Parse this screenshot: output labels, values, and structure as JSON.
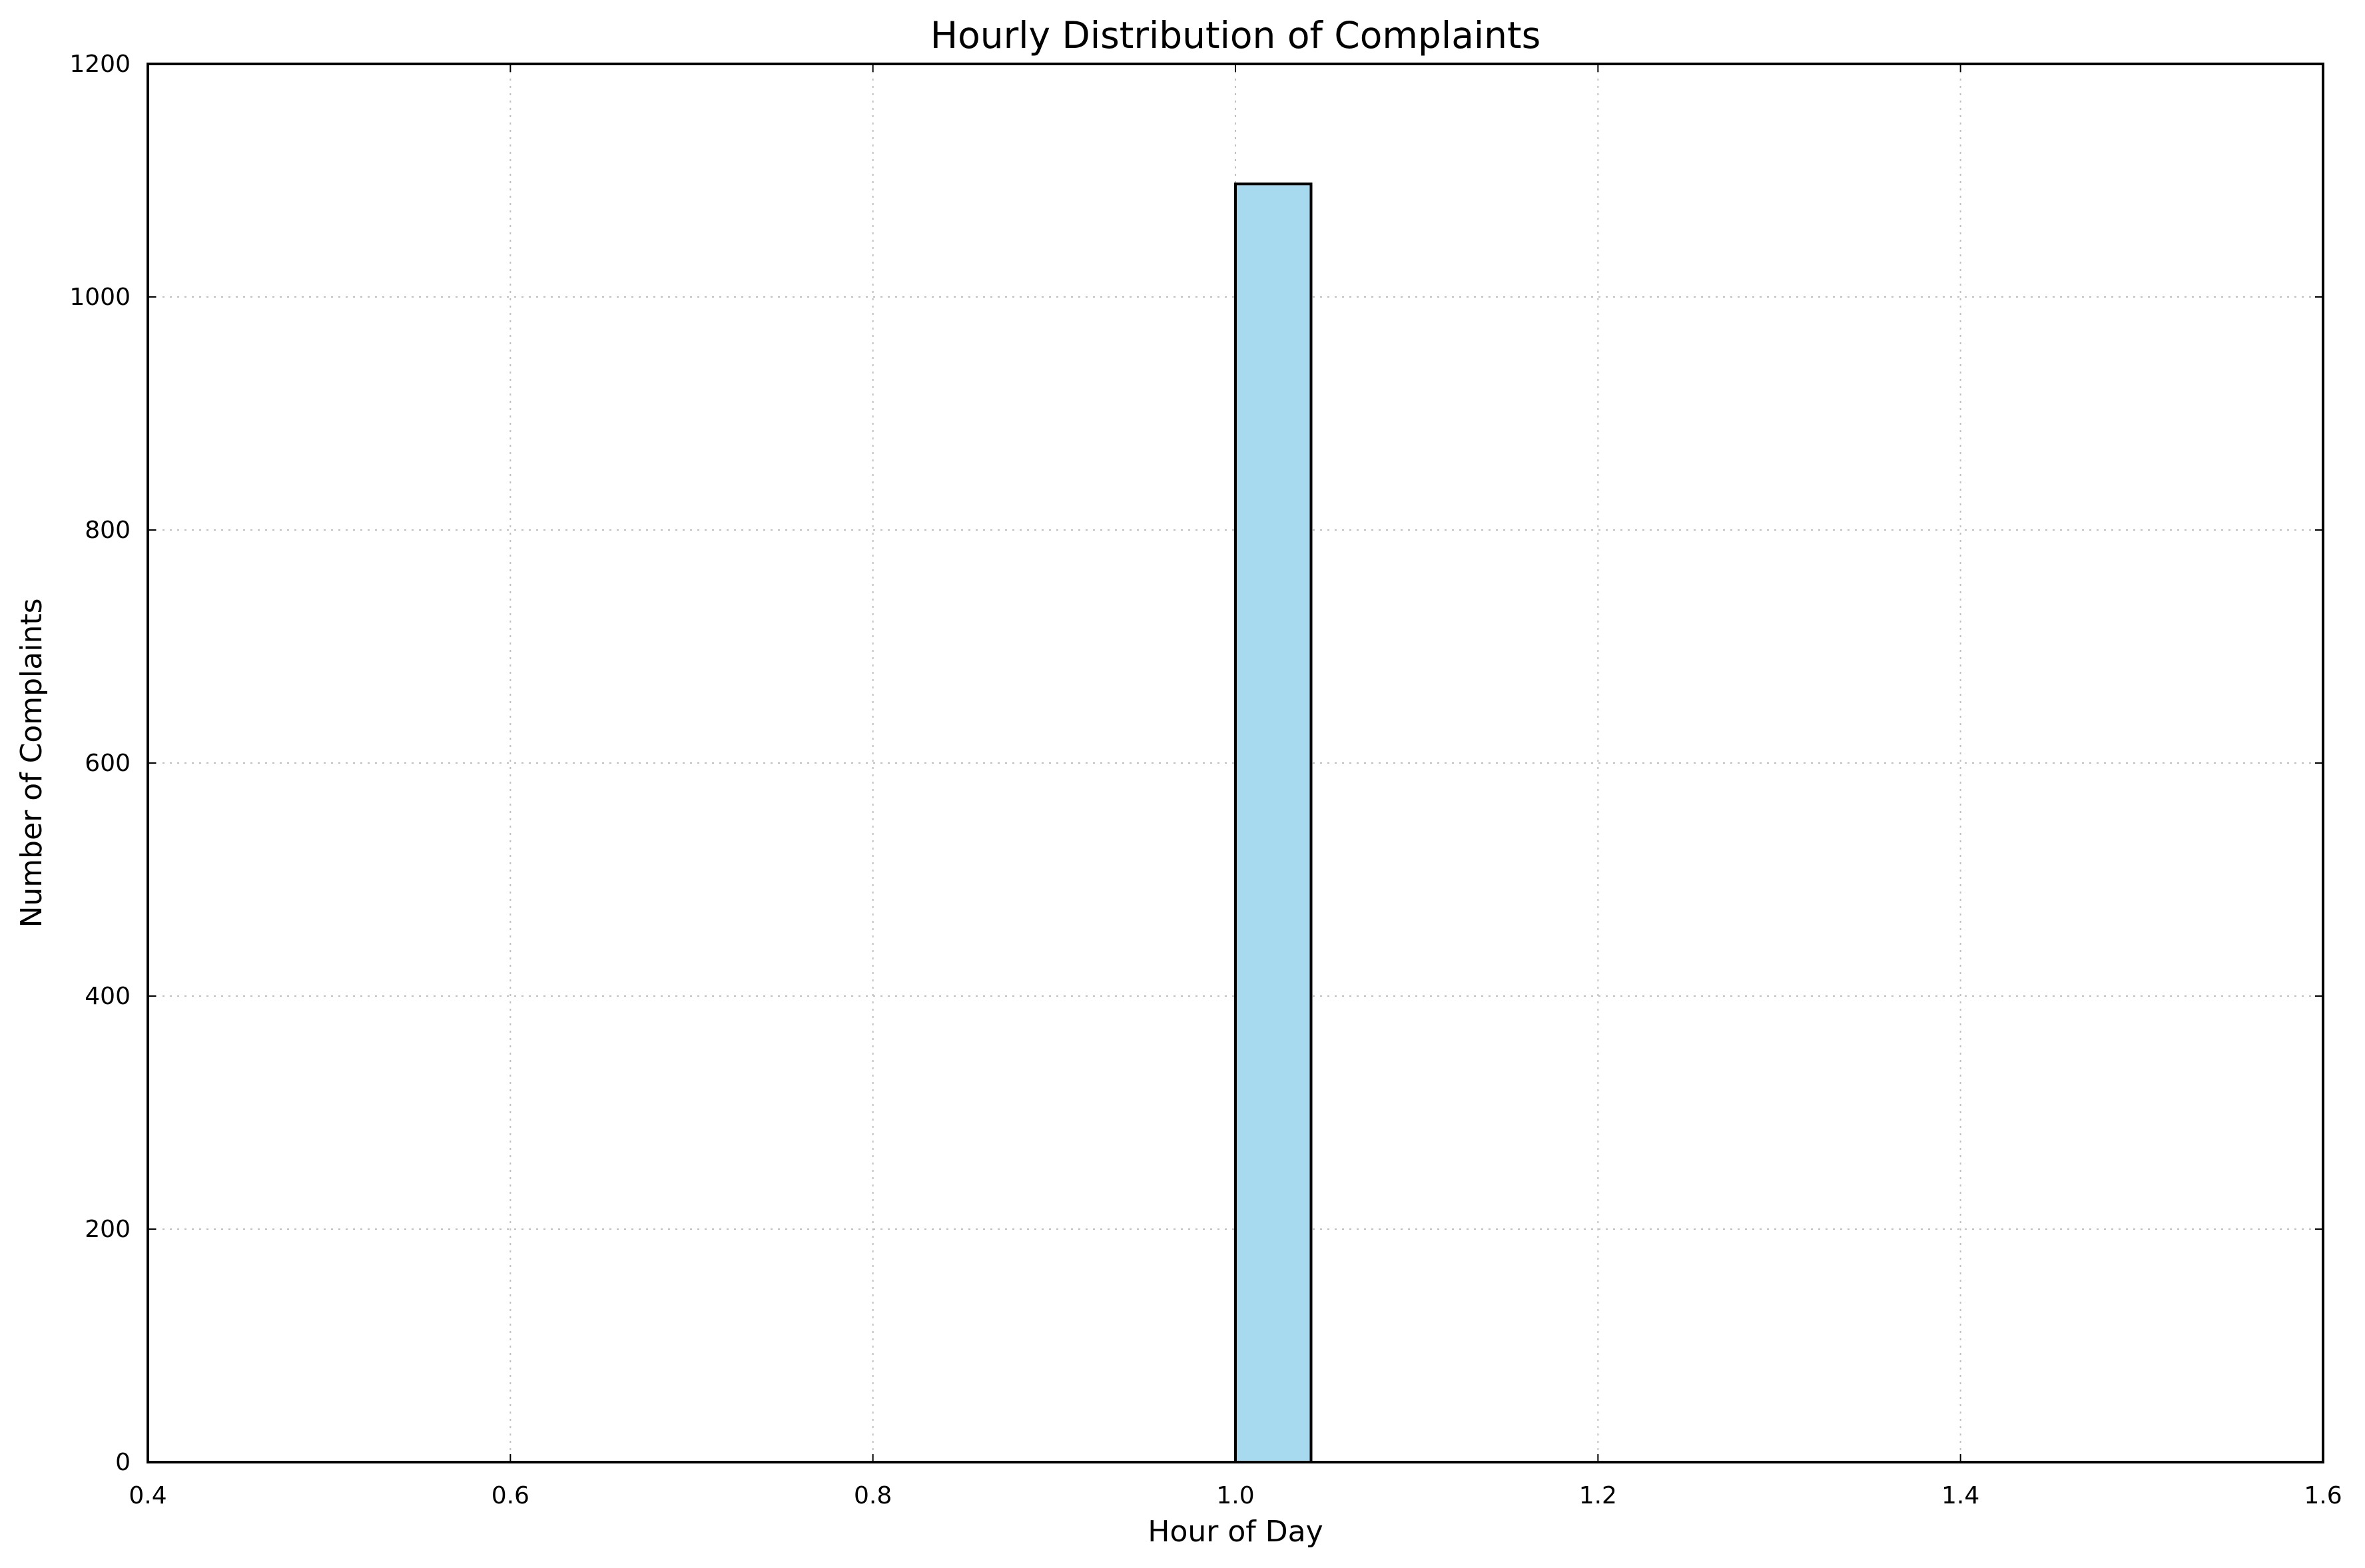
{
  "chart_data": {
    "type": "bar",
    "title": "Hourly Distribution of Complaints",
    "xlabel": "Hour of Day",
    "ylabel": "Number of Complaints",
    "xlim": [
      0.4,
      1.6
    ],
    "ylim": [
      0,
      1200
    ],
    "xticks": [
      0.4,
      0.6,
      0.8,
      1.0,
      1.2,
      1.4,
      1.6
    ],
    "xtick_labels": [
      "0.4",
      "0.6",
      "0.8",
      "1.0",
      "1.2",
      "1.4",
      "1.6"
    ],
    "yticks": [
      0,
      200,
      400,
      600,
      800,
      1000,
      1200
    ],
    "ytick_labels": [
      "0",
      "200",
      "400",
      "600",
      "800",
      "1000",
      "1200"
    ],
    "grid": true,
    "bars": [
      {
        "x_start": 1.0,
        "x_end": 1.0417,
        "value": 1097
      }
    ],
    "colors": {
      "bar_fill": "#a7d9ef",
      "bar_stroke": "#000000",
      "grid": "#bfbfbf",
      "axes": "#000000"
    }
  }
}
